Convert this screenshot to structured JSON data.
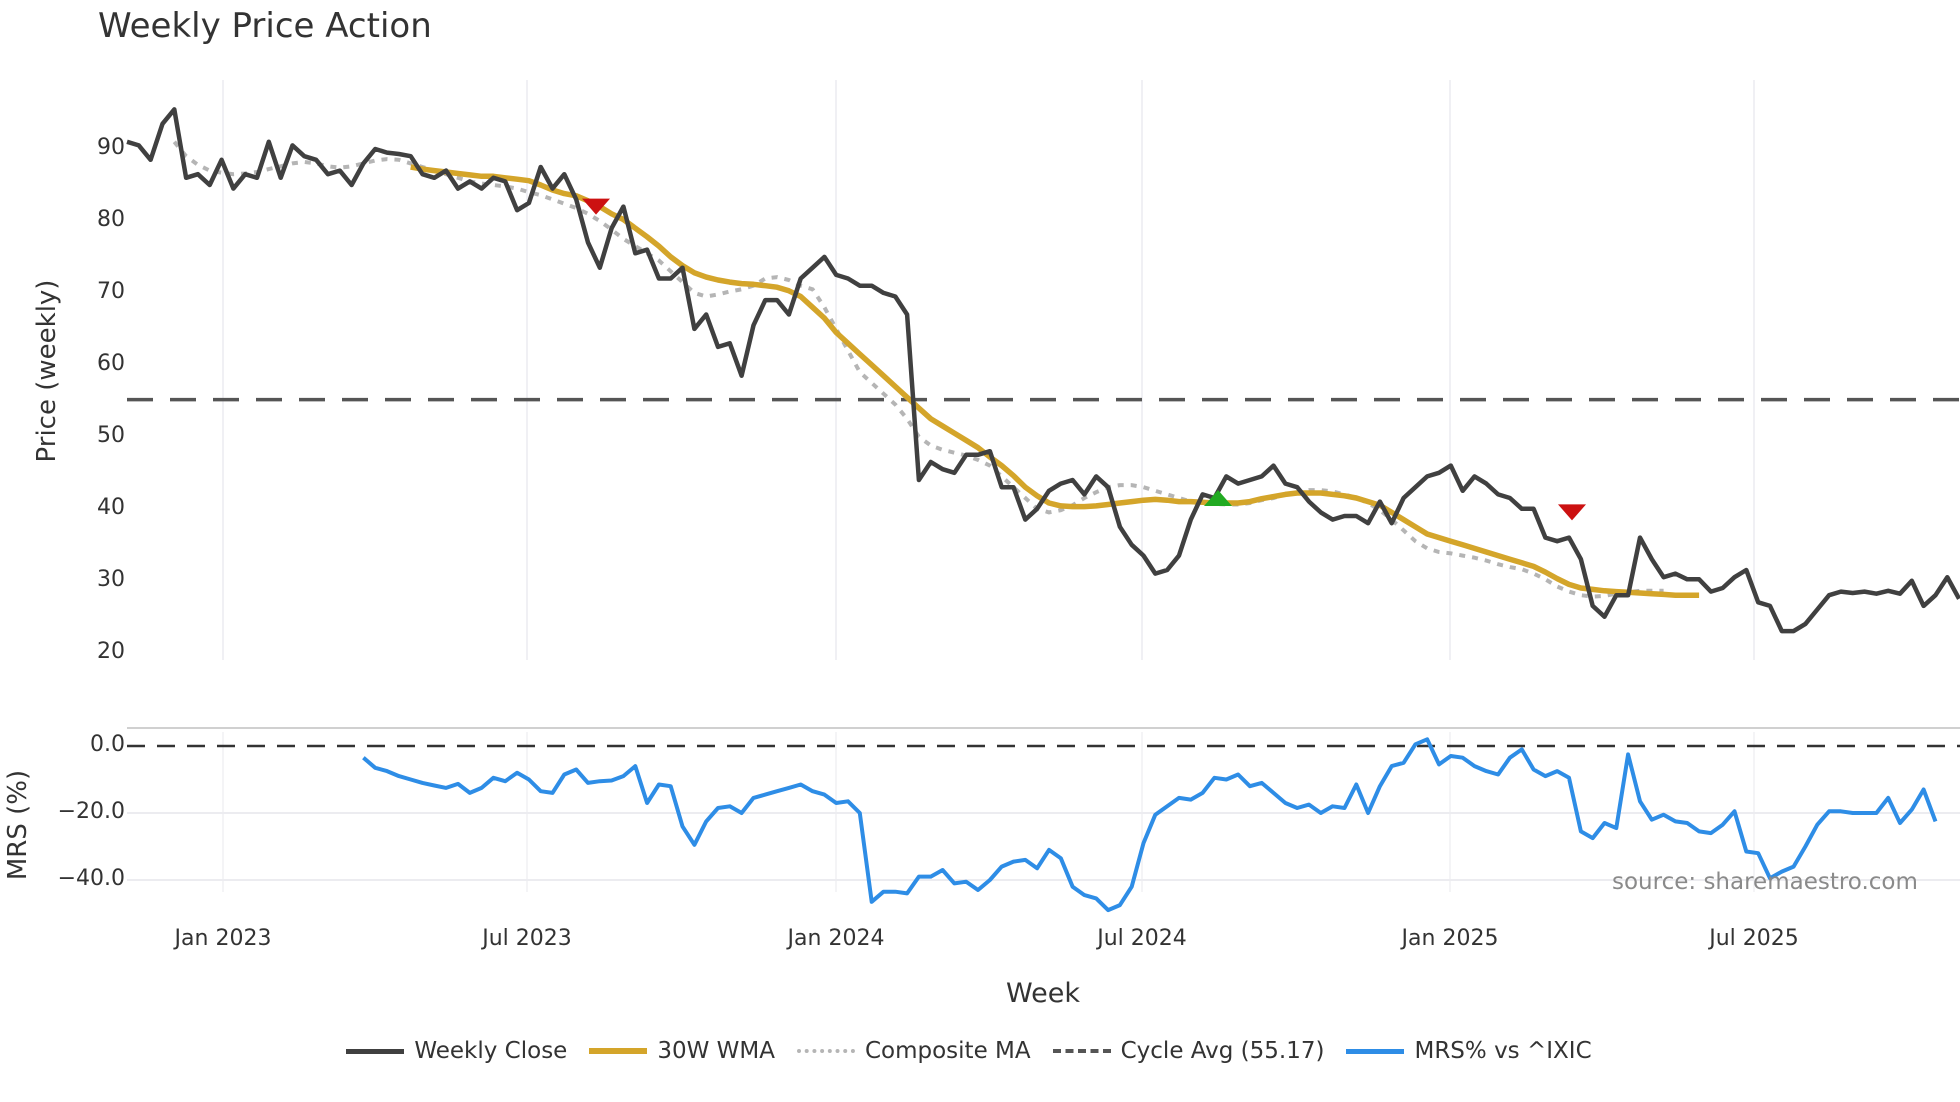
{
  "title": "Weekly Price Action",
  "price_panel": {
    "ylabel": "Price (weekly)",
    "yticks": [
      "90",
      "80",
      "70",
      "60",
      "50",
      "40",
      "30",
      "20"
    ]
  },
  "mrs_panel": {
    "ylabel": "MRS (%)",
    "yticks": [
      "0.0",
      "−20.0",
      "−40.0"
    ]
  },
  "xaxis": {
    "label": "Week",
    "ticks": [
      "Jan 2023",
      "Jul 2023",
      "Jan 2024",
      "Jul 2024",
      "Jan 2025",
      "Jul 2025"
    ]
  },
  "legend": [
    {
      "label": "Weekly Close",
      "color": "#404040",
      "style": "solid"
    },
    {
      "label": "30W WMA",
      "color": "#d4a52a",
      "style": "solid"
    },
    {
      "label": "Composite MA",
      "color": "#b5b5b5",
      "style": "dotted"
    },
    {
      "label": "Cycle Avg (55.17)",
      "color": "#555555",
      "style": "dashed"
    },
    {
      "label": "MRS% vs ^IXIC",
      "color": "#2e8de6",
      "style": "solid"
    }
  ],
  "source": "source: sharemaestro.com",
  "colors": {
    "close": "#404040",
    "wma": "#d4a52a",
    "composite": "#b5b5b5",
    "cycle": "#555555",
    "mrs": "#2e8de6",
    "sell_marker": "#cc1111",
    "buy_marker": "#22aa22"
  },
  "chart_data": [
    {
      "type": "line",
      "title": "Weekly Price Action",
      "xlabel": "Week",
      "ylabel": "Price (weekly)",
      "ylim": [
        18,
        98
      ],
      "x_ticks": [
        "Jan 2023",
        "Jul 2023",
        "Jan 2024",
        "Jul 2024",
        "Jan 2025",
        "Jul 2025"
      ],
      "x_start": "2022-12 (approx)",
      "x_step": "1 week",
      "series": [
        {
          "name": "Weekly Close",
          "values": [
            91,
            90.5,
            88.5,
            93.5,
            95.5,
            86,
            86.5,
            85,
            88.5,
            84.5,
            86.5,
            86,
            91,
            86,
            90.5,
            89,
            88.5,
            86.5,
            87,
            85,
            88,
            90,
            89.5,
            89.3,
            89,
            86.5,
            86,
            87,
            84.5,
            85.5,
            84.5,
            86,
            85.5,
            81.5,
            82.5,
            87.5,
            84.5,
            86.5,
            83,
            77,
            73.5,
            79,
            82,
            75.5,
            76,
            72,
            72,
            73.5,
            65,
            67,
            62.5,
            63,
            58.5,
            65.5,
            69,
            69,
            67,
            72,
            73.5,
            75,
            72.5,
            72,
            71,
            71,
            70,
            69.5,
            67,
            44,
            46.5,
            45.5,
            45,
            47.5,
            47.5,
            48,
            43,
            43,
            38.5,
            40,
            42.5,
            43.5,
            44,
            42,
            44.5,
            43,
            37.5,
            35,
            33.5,
            31,
            31.5,
            33.5,
            38.5,
            42,
            41.5,
            44.5,
            43.5,
            44,
            44.5,
            46,
            43.5,
            43,
            41,
            39.5,
            38.5,
            39,
            39,
            38,
            41,
            38,
            41.5,
            43,
            44.5,
            45,
            46,
            42.5,
            44.5,
            43.5,
            42,
            41.5,
            40,
            40,
            36,
            35.5,
            36,
            33,
            26.5,
            25,
            28,
            28,
            36,
            33,
            30.5,
            31,
            30.2,
            30.2,
            28.5,
            29,
            30.5,
            31.5,
            27,
            26.5,
            23,
            23,
            24,
            26,
            28,
            28.5,
            28.3,
            28.5,
            28.2,
            28.6,
            28.2,
            30,
            26.5,
            28,
            30.5,
            27.5
          ]
        },
        {
          "name": "30W WMA",
          "start_index": 24,
          "values": [
            87.5,
            87.2,
            87,
            86.8,
            86.6,
            86.4,
            86.2,
            86.2,
            86,
            85.8,
            85.6,
            85,
            84.3,
            83.8,
            83.5,
            82.8,
            82,
            81,
            80.2,
            79,
            77.8,
            76.5,
            75,
            73.8,
            72.8,
            72.2,
            71.8,
            71.5,
            71.3,
            71.2,
            71,
            70.8,
            70.3,
            69.5,
            68,
            66.5,
            64.5,
            63,
            61.5,
            60,
            58.5,
            57,
            55.5,
            54,
            52.5,
            51.5,
            50.5,
            49.5,
            48.5,
            47.2,
            46,
            44.6,
            43,
            41.8,
            40.8,
            40.4,
            40.3,
            40.3,
            40.4,
            40.6,
            40.8,
            41,
            41.2,
            41.3,
            41.2,
            41,
            41,
            40.9,
            40.8,
            40.8,
            40.8,
            41,
            41.4,
            41.7,
            42,
            42.2,
            42.2,
            42.2,
            42,
            41.8,
            41.5,
            41,
            40.5,
            39.5,
            38.5,
            37.5,
            36.5,
            36,
            35.5,
            35,
            34.5,
            34,
            33.5,
            33,
            32.5,
            32,
            31.2,
            30.3,
            29.5,
            29,
            28.8,
            28.6,
            28.5,
            28.4,
            28.3,
            28.2,
            28.1,
            28,
            28,
            28
          ]
        },
        {
          "name": "Composite MA",
          "start_index": 4,
          "values": [
            91,
            89,
            87.8,
            87,
            86.7,
            86.5,
            86.6,
            86.8,
            87.2,
            87.6,
            88,
            88.2,
            88,
            87.6,
            87.4,
            87.6,
            88,
            88.4,
            88.6,
            88.5,
            88,
            87.5,
            87,
            86.5,
            86,
            85.5,
            85.2,
            85,
            84.8,
            84.5,
            84,
            83.6,
            83,
            82.4,
            81.8,
            81,
            80,
            78.8,
            77.5,
            76.5,
            75.5,
            74.5,
            73,
            71.5,
            70,
            69.5,
            69.8,
            70.2,
            70.5,
            71,
            72,
            72.2,
            71.8,
            71,
            70.5,
            68,
            65,
            62,
            59,
            57.5,
            56,
            54.5,
            52.5,
            50,
            48.8,
            48.2,
            47.8,
            47.4,
            46.8,
            46,
            44.5,
            43,
            41.5,
            40,
            39.5,
            39.8,
            40.5,
            41.5,
            42.3,
            43,
            43.3,
            43.3,
            43,
            42.5,
            42,
            41.5,
            41,
            40.8,
            40.7,
            40.6,
            40.6,
            40.8,
            41.2,
            41.5,
            42,
            42.3,
            42.6,
            42.6,
            42.4,
            42,
            41.5,
            40.8,
            39.8,
            38.5,
            37,
            35.5,
            34.5,
            34,
            33.8,
            33.5,
            33.2,
            32.8,
            32.3,
            31.9,
            31.6,
            31,
            30.2,
            29.2,
            28.5,
            28,
            27.8,
            27.9,
            28.2,
            28.4,
            28.6,
            28.6,
            28.6
          ]
        },
        {
          "name": "Cycle Avg (55.17)",
          "constant": 55.17
        }
      ],
      "markers": [
        {
          "type": "sell",
          "shape": "triangle-down",
          "color": "#cc1111",
          "x_approx": "Aug 2023",
          "y": 82
        },
        {
          "type": "buy",
          "shape": "triangle-up",
          "color": "#22aa22",
          "x_approx": "Sep 2024",
          "y": 41.5
        },
        {
          "type": "sell",
          "shape": "triangle-down",
          "color": "#cc1111",
          "x_approx": "Apr 2025",
          "y": 39.5
        }
      ]
    },
    {
      "type": "line",
      "title": "",
      "xlabel": "Week",
      "ylabel": "MRS (%)",
      "ylim": [
        -51,
        4
      ],
      "y_ticks": [
        0,
        -20,
        -40
      ],
      "series": [
        {
          "name": "MRS% vs ^IXIC",
          "start_index": 20,
          "values": [
            -3.5,
            -6.5,
            -7.5,
            -9,
            -10,
            -11,
            -11.8,
            -12.5,
            -11.3,
            -14,
            -12.5,
            -9.5,
            -10.5,
            -8,
            -10,
            -13.5,
            -14,
            -8.5,
            -7,
            -11,
            -10.5,
            -10.3,
            -9,
            -6,
            -17,
            -11.5,
            -12,
            -24,
            -29.5,
            -22.5,
            -18.5,
            -18,
            -20,
            -15.5,
            -14.5,
            -13.5,
            -12.5,
            -11.5,
            -13.5,
            -14.5,
            -17,
            -16.5,
            -20,
            -46.5,
            -43.5,
            -43.5,
            -44,
            -39,
            -39,
            -37,
            -41,
            -40.5,
            -43,
            -40,
            -36,
            -34.5,
            -34,
            -36.5,
            -31,
            -33.5,
            -42,
            -44.5,
            -45.5,
            -49,
            -47.5,
            -42,
            -29,
            -20.5,
            -18,
            -15.5,
            -16,
            -14,
            -9.5,
            -10,
            -8.5,
            -12,
            -11,
            -14,
            -17,
            -18.5,
            -17.5,
            -20,
            -18,
            -18.5,
            -11.5,
            -20,
            -12,
            -6,
            -5,
            0.5,
            2,
            -5.5,
            -3,
            -3.5,
            -6,
            -7.5,
            -8.5,
            -3.5,
            -1,
            -7,
            -9,
            -7.5,
            -9.5,
            -25.5,
            -27.5,
            -23,
            -24.5,
            -2.5,
            -16.5,
            -22,
            -20.5,
            -22.5,
            -23,
            -25.5,
            -26,
            -23.5,
            -19.5,
            -31.5,
            -32,
            -39.5,
            -37.5,
            -36,
            -30,
            -23.5,
            -19.5,
            -19.5,
            -20,
            -20,
            -20,
            -15.5,
            -23,
            -19,
            -13,
            -22.5
          ]
        },
        {
          "name": "Zero line",
          "constant": 0,
          "style": "dashed"
        }
      ]
    }
  ]
}
